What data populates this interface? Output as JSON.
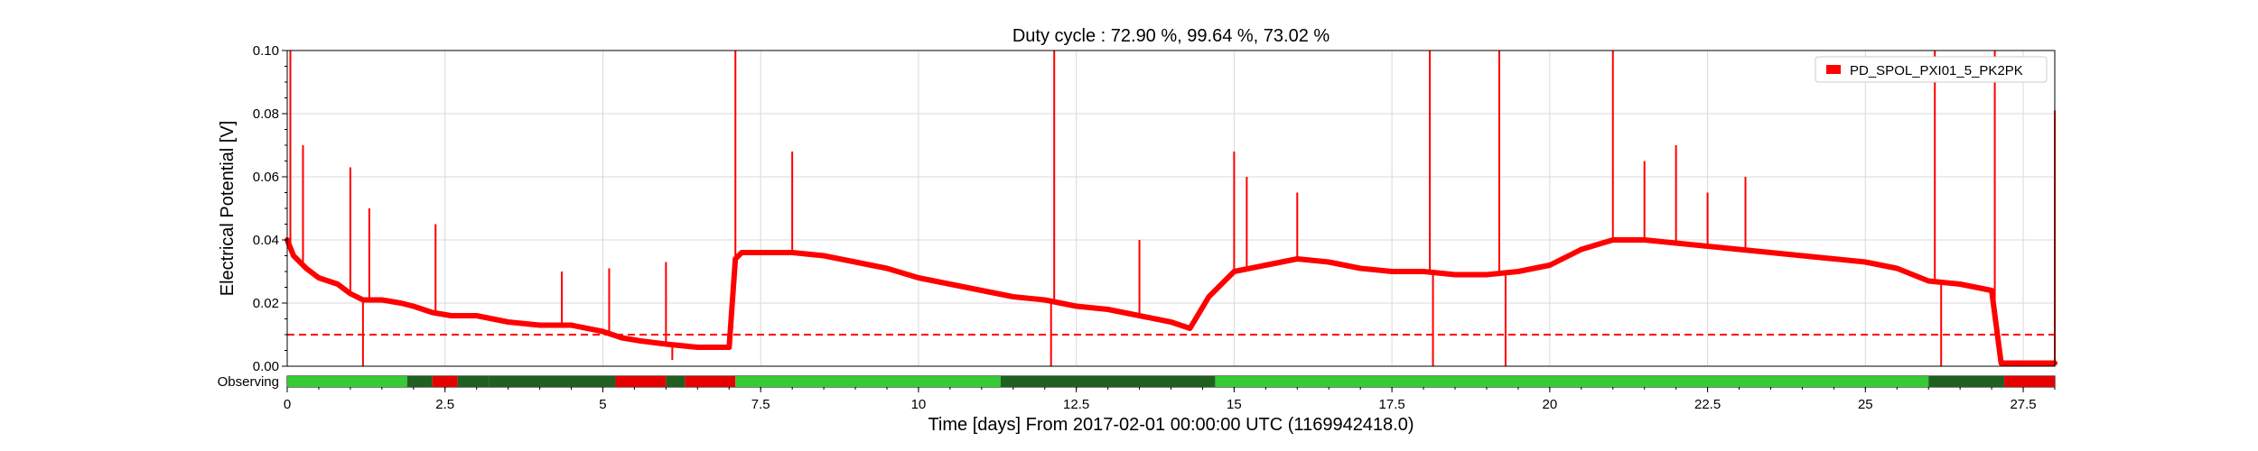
{
  "chart_data": {
    "type": "line",
    "title": "Duty cycle : 72.90 %, 99.64 %, 73.02 %",
    "xlabel": "Time [days] From 2017-02-01 00:00:00 UTC (1169942418.0)",
    "ylabel": "Electrical Potential [V]",
    "xlim": [
      0,
      28
    ],
    "ylim": [
      0,
      0.1
    ],
    "xticks": [
      0,
      2.5,
      5,
      7.5,
      10,
      12.5,
      15,
      17.5,
      20,
      22.5,
      25,
      27.5
    ],
    "xtick_labels": [
      "0",
      "2.5",
      "5",
      "7.5",
      "10",
      "12.5",
      "15",
      "17.5",
      "20",
      "22.5",
      "25",
      "27.5"
    ],
    "yticks": [
      0,
      0.02,
      0.04,
      0.06,
      0.08,
      0.1
    ],
    "ytick_labels": [
      "0.00",
      "0.02",
      "0.04",
      "0.06",
      "0.08",
      "0.10"
    ],
    "grid": true,
    "legend_position": "top-right",
    "series": [
      {
        "name": "PD_SPOL_PXI01_5_PK2PK",
        "color": "#ff0000",
        "x": [
          0,
          0.1,
          0.3,
          0.5,
          0.8,
          1.0,
          1.2,
          1.5,
          1.8,
          2.0,
          2.3,
          2.6,
          3.0,
          3.5,
          4.0,
          4.5,
          5.0,
          5.3,
          5.6,
          6.0,
          6.5,
          7.0,
          7.1,
          7.2,
          7.5,
          8.0,
          8.5,
          9.0,
          9.5,
          10.0,
          10.5,
          11.0,
          11.5,
          12.0,
          12.5,
          13.0,
          13.5,
          14.0,
          14.3,
          14.6,
          15.0,
          15.5,
          16.0,
          16.5,
          17.0,
          17.5,
          18.0,
          18.5,
          19.0,
          19.5,
          20.0,
          20.5,
          21.0,
          21.5,
          22.0,
          22.5,
          23.0,
          23.5,
          24.0,
          24.5,
          25.0,
          25.5,
          26.0,
          26.5,
          27.0,
          27.15,
          27.3,
          28.0
        ],
        "y": [
          0.04,
          0.035,
          0.031,
          0.028,
          0.026,
          0.023,
          0.021,
          0.021,
          0.02,
          0.019,
          0.017,
          0.016,
          0.016,
          0.014,
          0.013,
          0.013,
          0.011,
          0.009,
          0.008,
          0.007,
          0.006,
          0.006,
          0.034,
          0.036,
          0.036,
          0.036,
          0.035,
          0.033,
          0.031,
          0.028,
          0.026,
          0.024,
          0.022,
          0.021,
          0.019,
          0.018,
          0.016,
          0.014,
          0.012,
          0.022,
          0.03,
          0.032,
          0.034,
          0.033,
          0.031,
          0.03,
          0.03,
          0.029,
          0.029,
          0.03,
          0.032,
          0.037,
          0.04,
          0.04,
          0.039,
          0.038,
          0.037,
          0.036,
          0.035,
          0.034,
          0.033,
          0.031,
          0.027,
          0.026,
          0.024,
          0.001,
          0.001,
          0.001
        ]
      }
    ],
    "spikes": [
      {
        "x": 0.05,
        "y": 0.1
      },
      {
        "x": 0.25,
        "y": 0.07
      },
      {
        "x": 1.0,
        "y": 0.063
      },
      {
        "x": 1.2,
        "y": 0.0
      },
      {
        "x": 1.3,
        "y": 0.05
      },
      {
        "x": 2.35,
        "y": 0.045
      },
      {
        "x": 4.35,
        "y": 0.03
      },
      {
        "x": 5.1,
        "y": 0.031
      },
      {
        "x": 6.0,
        "y": 0.033
      },
      {
        "x": 6.1,
        "y": 0.002
      },
      {
        "x": 7.1,
        "y": 0.1
      },
      {
        "x": 8.0,
        "y": 0.068
      },
      {
        "x": 12.15,
        "y": 0.1
      },
      {
        "x": 12.1,
        "y": 0.0
      },
      {
        "x": 13.5,
        "y": 0.04
      },
      {
        "x": 15.0,
        "y": 0.068
      },
      {
        "x": 15.2,
        "y": 0.06
      },
      {
        "x": 16.0,
        "y": 0.055
      },
      {
        "x": 18.1,
        "y": 0.1
      },
      {
        "x": 18.15,
        "y": 0.0
      },
      {
        "x": 19.2,
        "y": 0.1
      },
      {
        "x": 19.3,
        "y": 0.0
      },
      {
        "x": 21.0,
        "y": 0.1
      },
      {
        "x": 21.5,
        "y": 0.065
      },
      {
        "x": 22.0,
        "y": 0.07
      },
      {
        "x": 22.5,
        "y": 0.055
      },
      {
        "x": 23.1,
        "y": 0.06
      },
      {
        "x": 26.1,
        "y": 0.1
      },
      {
        "x": 26.2,
        "y": 0.0
      },
      {
        "x": 27.05,
        "y": 0.1
      },
      {
        "x": 27.15,
        "y": 0.0
      },
      {
        "x": 28.0,
        "y": 0.081
      }
    ],
    "threshold": {
      "y": 0.01,
      "color": "#ff0000",
      "style": "dashed"
    },
    "segment_bar": {
      "label": "Observing",
      "colors": {
        "observing": "#33cc33",
        "dark": "#1f5f1f",
        "off": "#e60000"
      },
      "segments": [
        {
          "start": 0,
          "end": 1.9,
          "state": "observing"
        },
        {
          "start": 1.9,
          "end": 2.3,
          "state": "dark"
        },
        {
          "start": 2.3,
          "end": 2.7,
          "state": "off"
        },
        {
          "start": 2.7,
          "end": 3.2,
          "state": "dark"
        },
        {
          "start": 3.2,
          "end": 5.2,
          "state": "dark"
        },
        {
          "start": 5.2,
          "end": 6.0,
          "state": "off"
        },
        {
          "start": 6.0,
          "end": 6.3,
          "state": "dark"
        },
        {
          "start": 6.3,
          "end": 7.1,
          "state": "off"
        },
        {
          "start": 7.1,
          "end": 11.3,
          "state": "observing"
        },
        {
          "start": 11.3,
          "end": 14.7,
          "state": "dark"
        },
        {
          "start": 14.7,
          "end": 26.0,
          "state": "observing"
        },
        {
          "start": 26.0,
          "end": 27.2,
          "state": "dark"
        },
        {
          "start": 27.2,
          "end": 28.0,
          "state": "off"
        }
      ]
    }
  }
}
